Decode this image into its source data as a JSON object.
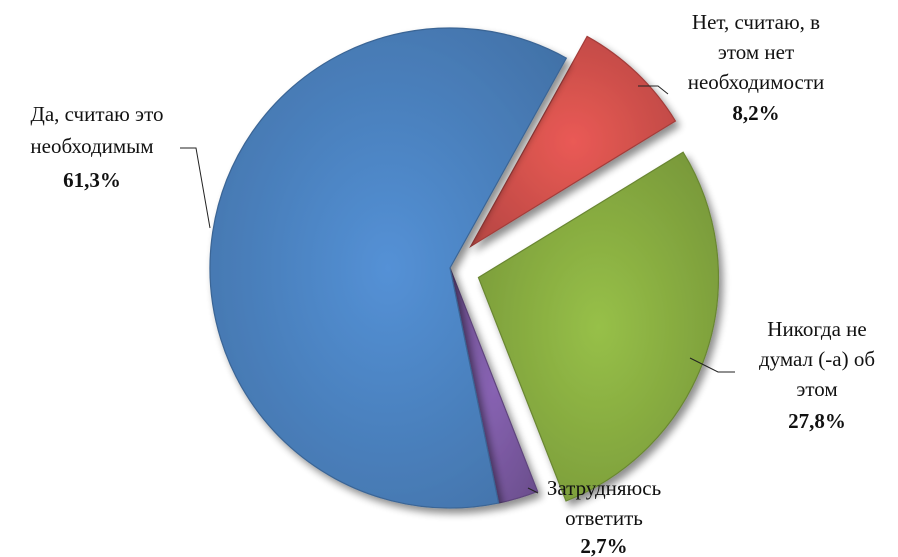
{
  "chart_data": {
    "type": "pie",
    "title": "",
    "slices": [
      {
        "lines": [
          "Нет, считаю, в",
          "этом нет",
          "необходимости"
        ],
        "percent_label": "8,2%",
        "value": 8.2,
        "color": "#d9534f",
        "exploded": true
      },
      {
        "lines": [
          "Никогда не",
          "думал (-а) об",
          "этом"
        ],
        "percent_label": "27,8%",
        "value": 27.8,
        "color": "#8cb243",
        "exploded": true
      },
      {
        "lines": [
          "Затрудняюсь",
          "ответить"
        ],
        "percent_label": "2,7%",
        "value": 2.7,
        "color": "#7e5ca6",
        "exploded": false
      },
      {
        "lines": [
          "Да, считаю это",
          "необходимым"
        ],
        "percent_label": "61,3%",
        "value": 61.3,
        "color": "#4e86c6",
        "exploded": false
      }
    ]
  }
}
